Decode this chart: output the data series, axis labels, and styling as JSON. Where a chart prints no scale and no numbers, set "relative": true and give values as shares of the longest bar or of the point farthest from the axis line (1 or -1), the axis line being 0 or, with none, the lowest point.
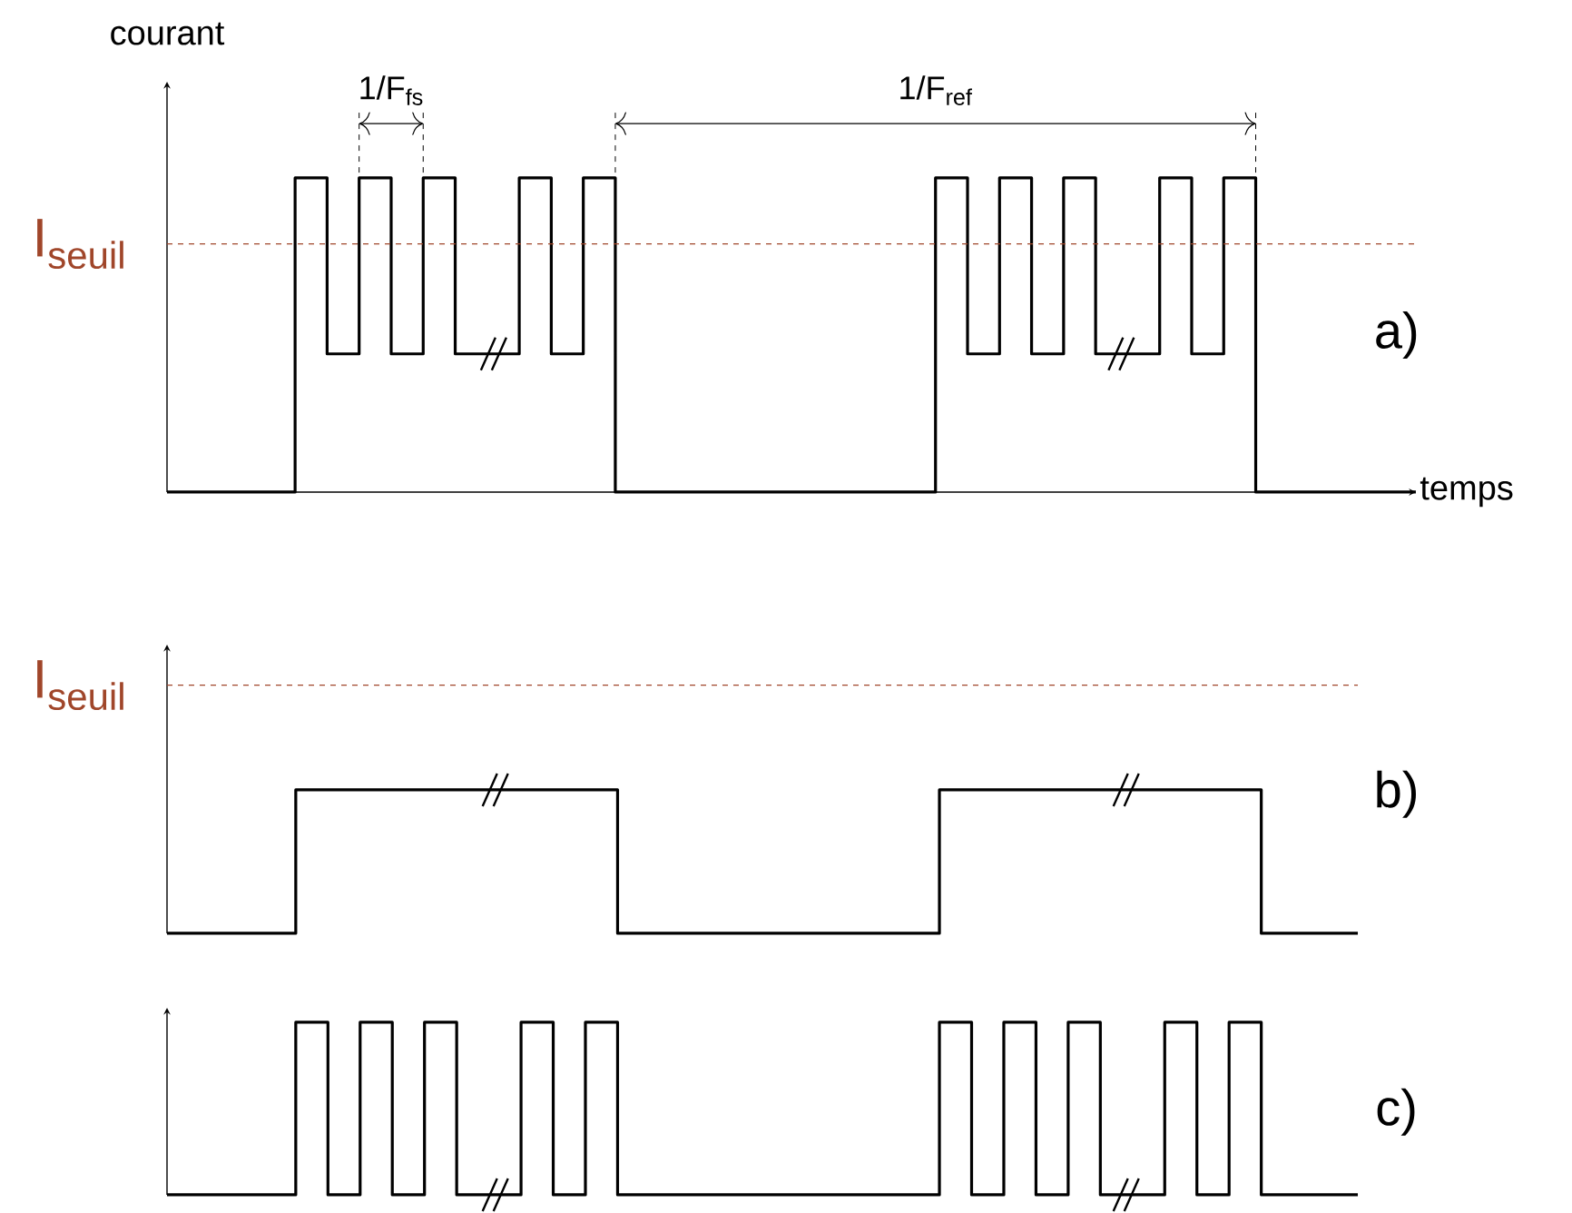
{
  "chart_data": [
    {
      "type": "step",
      "relative": true,
      "color": "#000000",
      "xlabel": "temps",
      "ylabel": "courant",
      "categories": [
        null,
        null,
        null,
        null,
        null,
        null,
        null,
        null,
        null,
        null,
        null,
        null,
        null,
        null,
        null,
        null,
        null,
        null,
        null,
        null,
        null,
        null,
        null,
        null,
        null,
        null,
        null,
        null,
        null,
        null,
        null,
        null,
        null,
        null,
        null,
        null,
        null,
        null,
        null,
        null
      ],
      "values": [
        0,
        0,
        0,
        0,
        1,
        0.44,
        1,
        0.44,
        1,
        0.44,
        0.44,
        1,
        0.44,
        1,
        0,
        0,
        0,
        0,
        0,
        0,
        0,
        0,
        0,
        0,
        1,
        0.44,
        1,
        0.44,
        1,
        0.44,
        0.44,
        1,
        0.44,
        1,
        0,
        0,
        0,
        0,
        0,
        0
      ],
      "ref_lines": [
        {
          "axis": "y",
          "value": 0.79,
          "label": "I$_{seuil}$",
          "color": "#a0462a",
          "line_style": "dashed"
        }
      ],
      "annotations": [
        "1/F$_{fs}$",
        "1/F$_{ref}$",
        "a)"
      ]
    },
    {
      "type": "step",
      "relative": true,
      "color": "#000000",
      "categories": [
        null,
        null,
        null,
        null,
        null,
        null,
        null,
        null,
        null,
        null,
        null,
        null,
        null,
        null,
        null,
        null,
        null,
        null,
        null,
        null,
        null,
        null,
        null,
        null,
        null,
        null,
        null,
        null,
        null,
        null,
        null,
        null,
        null,
        null,
        null,
        null,
        null,
        null
      ],
      "values": [
        0,
        0,
        0,
        0,
        1,
        1,
        1,
        1,
        1,
        1,
        1,
        1,
        1,
        1,
        0,
        0,
        0,
        0,
        0,
        0,
        0,
        0,
        0,
        0,
        1,
        1,
        1,
        1,
        1,
        1,
        1,
        1,
        1,
        1,
        0,
        0,
        0,
        0
      ],
      "ref_lines": [
        {
          "axis": "y",
          "value": 1.73,
          "label": "I$_{seuil}$",
          "color": "#a0462a",
          "line_style": "dashed"
        }
      ],
      "annotations": [
        "b)"
      ]
    },
    {
      "type": "step",
      "relative": true,
      "color": "#000000",
      "categories": [
        null,
        null,
        null,
        null,
        null,
        null,
        null,
        null,
        null,
        null,
        null,
        null,
        null,
        null,
        null,
        null,
        null,
        null,
        null,
        null,
        null,
        null,
        null,
        null,
        null,
        null,
        null,
        null,
        null,
        null,
        null,
        null,
        null,
        null,
        null,
        null,
        null,
        null
      ],
      "values": [
        0,
        0,
        0,
        0,
        1,
        0,
        1,
        0,
        1,
        0,
        0,
        1,
        0,
        1,
        0,
        0,
        0,
        0,
        0,
        0,
        0,
        0,
        0,
        0,
        1,
        0,
        1,
        0,
        1,
        0,
        0,
        1,
        0,
        1,
        0,
        0,
        0,
        0
      ],
      "annotations": [
        "c)"
      ]
    }
  ]
}
